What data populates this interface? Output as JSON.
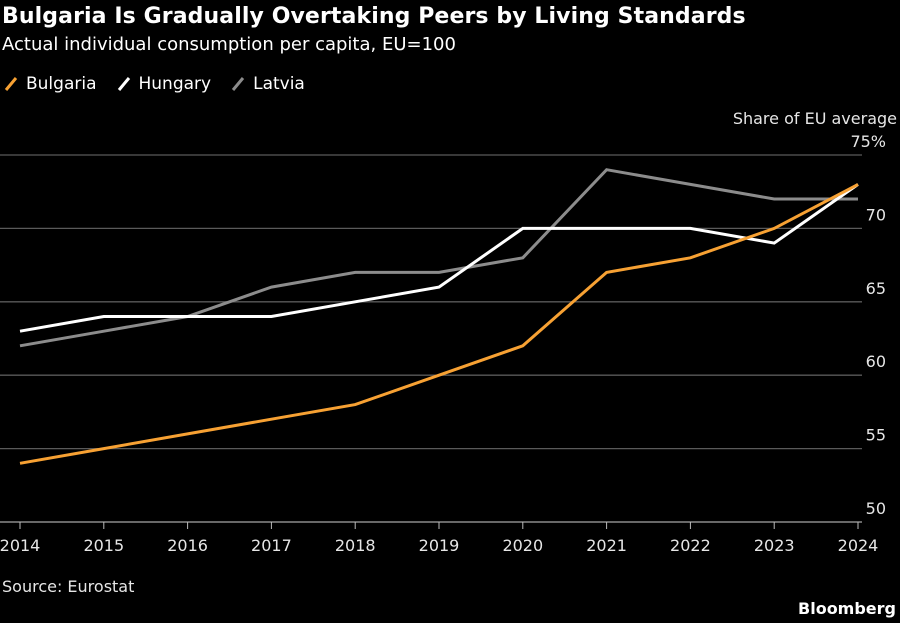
{
  "header": {
    "title": "Bulgaria Is Gradually Overtaking Peers by Living Standards",
    "subtitle": "Actual individual consumption per capita, EU=100"
  },
  "footer": {
    "source": "Source: Eurostat",
    "brand": "Bloomberg"
  },
  "chart_data": {
    "type": "line",
    "title": "Bulgaria Is Gradually Overtaking Peers by Living Standards",
    "subtitle": "Actual individual consumption per capita, EU=100",
    "xlabel": "",
    "ylabel": "Share of EU average",
    "x": [
      2014,
      2015,
      2016,
      2017,
      2018,
      2019,
      2020,
      2021,
      2022,
      2023,
      2024
    ],
    "x_tick_labels": [
      "2014",
      "2015",
      "2016",
      "2017",
      "2018",
      "2019",
      "2020",
      "2021",
      "2022",
      "2023",
      "2024"
    ],
    "ylim": [
      50,
      75
    ],
    "y_ticks": [
      50,
      55,
      60,
      65,
      70,
      75
    ],
    "y_tick_labels": [
      "50",
      "55",
      "60",
      "65",
      "70",
      "75%"
    ],
    "grid": true,
    "y_axis_side": "right",
    "legend_position": "top-left",
    "series": [
      {
        "name": "Bulgaria",
        "color": "#f7a133",
        "values": [
          54,
          55,
          56,
          57,
          58,
          60,
          62,
          67,
          68,
          70,
          73
        ]
      },
      {
        "name": "Hungary",
        "color": "#ffffff",
        "values": [
          63,
          64,
          64,
          64,
          65,
          66,
          70,
          70,
          70,
          69,
          73
        ]
      },
      {
        "name": "Latvia",
        "color": "#8c8c8c",
        "values": [
          62,
          63,
          64,
          66,
          67,
          67,
          68,
          74,
          73,
          72,
          72
        ]
      }
    ]
  }
}
